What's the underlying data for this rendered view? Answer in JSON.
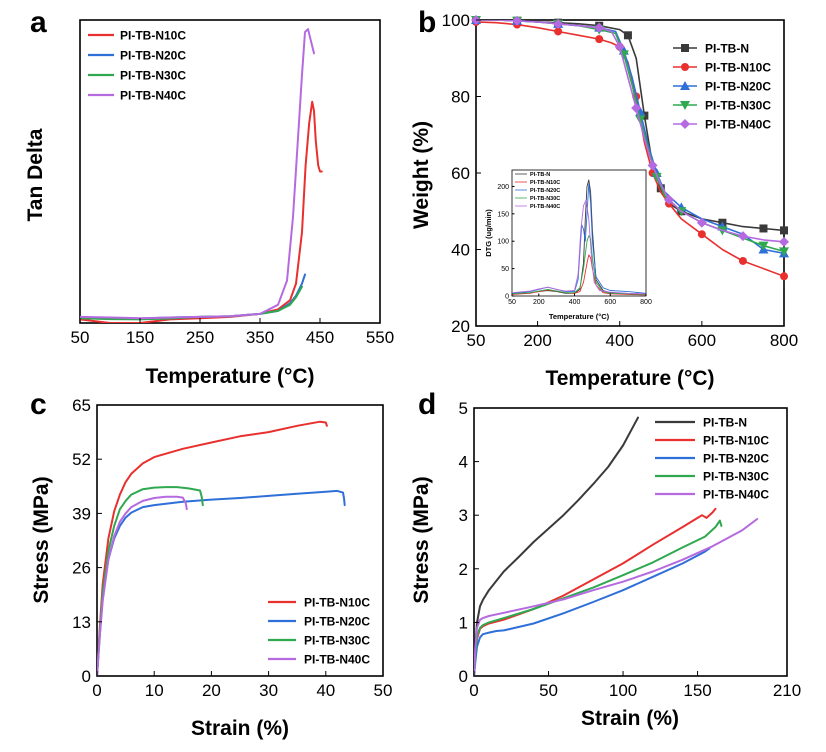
{
  "colors": {
    "PI-TB-N": "#3a3a3a",
    "PI-TB-N10C": "#e8302f",
    "PI-TB-N20C": "#2f6fd8",
    "PI-TB-N30C": "#2fa84f",
    "PI-TB-N40C": "#b56ae0"
  },
  "chart_data": [
    {
      "panel": "a",
      "type": "line",
      "xlabel": "Temperature (°C)",
      "ylabel": "Tan Delta",
      "xlim": [
        50,
        550
      ],
      "xticks": [
        "50",
        "150",
        "250",
        "350",
        "450",
        "550"
      ],
      "ylim": [
        0,
        1.0
      ],
      "yticks": [],
      "legend_position": "top-left",
      "series": [
        {
          "name": "PI-TB-N10C",
          "marker": "line",
          "x": [
            50,
            100,
            150,
            200,
            250,
            300,
            350,
            380,
            400,
            410,
            420,
            426,
            432,
            437,
            440,
            443,
            447,
            450,
            453
          ],
          "y": [
            0.012,
            0.0,
            0.0,
            0.012,
            0.016,
            0.02,
            0.03,
            0.045,
            0.075,
            0.13,
            0.3,
            0.52,
            0.66,
            0.73,
            0.7,
            0.6,
            0.52,
            0.5,
            0.5
          ]
        },
        {
          "name": "PI-TB-N20C",
          "marker": "line",
          "x": [
            50,
            100,
            150,
            200,
            250,
            300,
            350,
            380,
            400,
            410,
            420,
            425
          ],
          "y": [
            0.018,
            0.015,
            0.015,
            0.018,
            0.02,
            0.022,
            0.03,
            0.04,
            0.065,
            0.09,
            0.13,
            0.16
          ]
        },
        {
          "name": "PI-TB-N30C",
          "marker": "line",
          "x": [
            50,
            100,
            150,
            200,
            250,
            300,
            350,
            380,
            400,
            410,
            420
          ],
          "y": [
            0.016,
            0.013,
            0.012,
            0.015,
            0.02,
            0.022,
            0.03,
            0.04,
            0.06,
            0.085,
            0.12
          ]
        },
        {
          "name": "PI-TB-N40C",
          "marker": "line",
          "x": [
            50,
            100,
            150,
            200,
            250,
            300,
            350,
            380,
            395,
            405,
            413,
            420,
            425,
            430,
            435,
            440
          ],
          "y": [
            0.02,
            0.018,
            0.016,
            0.018,
            0.02,
            0.022,
            0.03,
            0.06,
            0.14,
            0.35,
            0.6,
            0.82,
            0.96,
            0.97,
            0.93,
            0.89
          ]
        }
      ]
    },
    {
      "panel": "b",
      "type": "line",
      "xlabel": "Temperature (°C)",
      "ylabel": "Weight (%)",
      "xlim": [
        50,
        800
      ],
      "xticks": [
        "50",
        "200",
        "400",
        "600",
        "800"
      ],
      "ylim": [
        20,
        100
      ],
      "yticks": [
        "20",
        "40",
        "60",
        "80",
        "100"
      ],
      "legend_position": "top-right",
      "series": [
        {
          "name": "PI-TB-N",
          "marker": "square",
          "x": [
            50,
            100,
            150,
            200,
            250,
            300,
            350,
            400,
            420,
            440,
            460,
            480,
            500,
            520,
            550,
            600,
            650,
            700,
            750,
            800
          ],
          "y": [
            100,
            100,
            99.8,
            99.5,
            99.3,
            99,
            98.5,
            97.5,
            96,
            90,
            75,
            62,
            56,
            52,
            50,
            48,
            47,
            46,
            45.5,
            45
          ]
        },
        {
          "name": "PI-TB-N10C",
          "marker": "circle",
          "x": [
            50,
            100,
            150,
            200,
            250,
            300,
            350,
            380,
            400,
            420,
            440,
            460,
            480,
            500,
            520,
            550,
            600,
            650,
            700,
            750,
            800
          ],
          "y": [
            99.5,
            99.3,
            98.8,
            98,
            97,
            96,
            95,
            94,
            93,
            89,
            80,
            68,
            60,
            55,
            52,
            48,
            44,
            40,
            37,
            35,
            33
          ]
        },
        {
          "name": "PI-TB-N20C",
          "marker": "triangle-up",
          "x": [
            50,
            100,
            150,
            200,
            250,
            300,
            350,
            390,
            410,
            430,
            450,
            470,
            490,
            510,
            550,
            600,
            650,
            700,
            750,
            800
          ],
          "y": [
            100,
            100,
            99.8,
            99.5,
            99,
            98.5,
            98,
            97,
            92,
            85,
            76,
            67,
            60,
            55,
            51,
            48,
            46,
            44,
            40,
            39
          ]
        },
        {
          "name": "PI-TB-N30C",
          "marker": "triangle-down",
          "x": [
            50,
            100,
            150,
            200,
            250,
            300,
            350,
            390,
            410,
            430,
            450,
            470,
            490,
            510,
            550,
            600,
            650,
            700,
            750,
            800
          ],
          "y": [
            100,
            100,
            99.8,
            99.5,
            99,
            98.5,
            97.5,
            96.5,
            91,
            83,
            74,
            66,
            59,
            54,
            50,
            47,
            45,
            43,
            41,
            39.5
          ]
        },
        {
          "name": "PI-TB-N40C",
          "marker": "diamond",
          "x": [
            50,
            100,
            150,
            200,
            250,
            300,
            350,
            380,
            400,
            420,
            440,
            460,
            480,
            500,
            520,
            550,
            600,
            650,
            700,
            750,
            800
          ],
          "y": [
            100,
            100,
            99.8,
            99.5,
            99,
            98.5,
            98,
            97,
            93,
            85,
            77,
            69,
            62,
            57,
            53,
            50,
            47,
            45,
            43.5,
            42.5,
            42
          ]
        }
      ],
      "inset": {
        "type": "line",
        "xlabel": "Temperature (°C)",
        "ylabel": "DTG (ug/min)",
        "xlim": [
          50,
          800
        ],
        "xticks": [
          "50",
          "200",
          "400",
          "600",
          "800"
        ],
        "ylim": [
          0,
          230
        ],
        "yticks": [
          "0",
          "50",
          "100",
          "150",
          "200"
        ],
        "legend_position": "top-left",
        "series": [
          {
            "name": "PI-TB-N",
            "x": [
              50,
              150,
              200,
              250,
              300,
              350,
              400,
              430,
              450,
              460,
              470,
              480,
              490,
              500,
              520,
              560,
              600,
              700,
              800
            ],
            "y": [
              4,
              6,
              8,
              10,
              8,
              5,
              5,
              12,
              60,
              140,
              200,
              212,
              190,
              120,
              30,
              10,
              6,
              4,
              3
            ]
          },
          {
            "name": "PI-TB-N10C",
            "x": [
              50,
              150,
              200,
              250,
              300,
              350,
              400,
              430,
              450,
              470,
              480,
              490,
              500,
              520,
              560,
              600,
              700,
              800
            ],
            "y": [
              3,
              5,
              8,
              11,
              9,
              6,
              5,
              8,
              25,
              60,
              75,
              70,
              50,
              20,
              6,
              4,
              3,
              2
            ]
          },
          {
            "name": "PI-TB-N20C",
            "x": [
              50,
              150,
              200,
              250,
              300,
              350,
              400,
              420,
              430,
              440,
              450,
              460,
              470,
              480,
              490,
              500,
              520,
              560,
              600,
              700,
              800
            ],
            "y": [
              5,
              8,
              12,
              16,
              12,
              8,
              8,
              30,
              80,
              130,
              122,
              100,
              150,
              205,
              170,
              100,
              35,
              15,
              10,
              8,
              5
            ]
          },
          {
            "name": "PI-TB-N30C",
            "x": [
              50,
              150,
              200,
              250,
              300,
              350,
              400,
              430,
              450,
              470,
              480,
              490,
              500,
              520,
              560,
              600,
              700,
              800
            ],
            "y": [
              4,
              6,
              9,
              12,
              9,
              6,
              6,
              15,
              50,
              100,
              110,
              105,
              70,
              25,
              8,
              5,
              4,
              3
            ]
          },
          {
            "name": "PI-TB-N40C",
            "x": [
              50,
              150,
              200,
              250,
              300,
              350,
              400,
              420,
              435,
              450,
              465,
              480,
              495,
              510,
              540,
              600,
              700,
              800
            ],
            "y": [
              6,
              9,
              13,
              16,
              12,
              9,
              10,
              40,
              120,
              165,
              175,
              140,
              70,
              25,
              10,
              7,
              5,
              4
            ]
          }
        ]
      }
    },
    {
      "panel": "c",
      "type": "line",
      "xlabel": "Strain (%)",
      "ylabel": "Stress (MPa)",
      "xlim": [
        0,
        50
      ],
      "xticks": [
        "0",
        "10",
        "20",
        "30",
        "40",
        "50"
      ],
      "ylim": [
        0,
        65
      ],
      "yticks": [
        "0",
        "13",
        "26",
        "39",
        "52",
        "65"
      ],
      "legend_position": "bottom-right",
      "series": [
        {
          "name": "PI-TB-N10C",
          "marker": "line",
          "x": [
            0,
            0.5,
            1,
            2,
            3,
            4,
            5,
            6,
            8,
            10,
            15,
            20,
            25,
            30,
            35,
            39,
            40,
            40.2
          ],
          "y": [
            0,
            12,
            22,
            33,
            39.5,
            43.5,
            46.5,
            48.5,
            51,
            52.5,
            54.5,
            56,
            57.5,
            58.5,
            60,
            61,
            60.8,
            60
          ]
        },
        {
          "name": "PI-TB-N20C",
          "marker": "line",
          "x": [
            0,
            0.5,
            1,
            2,
            3,
            4,
            5,
            6,
            8,
            10,
            15,
            20,
            25,
            30,
            35,
            40,
            42,
            43,
            43.2,
            43.3
          ],
          "y": [
            0,
            10,
            19,
            28,
            33,
            36,
            38,
            39.2,
            40.5,
            41,
            41.8,
            42.3,
            42.7,
            43.2,
            43.7,
            44.2,
            44.4,
            44,
            42.5,
            41
          ]
        },
        {
          "name": "PI-TB-N30C",
          "marker": "line",
          "x": [
            0,
            0.5,
            1,
            2,
            3,
            4,
            5,
            6,
            8,
            10,
            12,
            14,
            16,
            18,
            18.3,
            18.5
          ],
          "y": [
            0,
            11,
            20,
            30,
            36,
            40,
            42,
            43.5,
            44.8,
            45.2,
            45.3,
            45.3,
            45,
            44.5,
            43,
            41
          ]
        },
        {
          "name": "PI-TB-N40C",
          "marker": "line",
          "x": [
            0,
            0.5,
            1,
            2,
            3,
            4,
            5,
            6,
            8,
            10,
            12,
            14,
            15,
            15.5,
            15.7
          ],
          "y": [
            0,
            10,
            18,
            28,
            33.5,
            37,
            39,
            40.5,
            42,
            42.7,
            43,
            43,
            42.8,
            41.5,
            40
          ]
        }
      ]
    },
    {
      "panel": "d",
      "type": "line",
      "xlabel": "Strain (%)",
      "ylabel": "Stress (MPa)",
      "xlim": [
        0,
        210
      ],
      "xticks": [
        "0",
        "50",
        "100",
        "150",
        "210"
      ],
      "ylim": [
        0,
        5
      ],
      "yticks": [
        "0",
        "1",
        "2",
        "3",
        "4",
        "5"
      ],
      "legend_position": "top-right",
      "series": [
        {
          "name": "PI-TB-N",
          "marker": "line",
          "x": [
            0,
            1,
            2,
            4,
            6,
            10,
            20,
            30,
            40,
            50,
            60,
            70,
            80,
            90,
            100,
            110
          ],
          "y": [
            0,
            0.6,
            1.0,
            1.3,
            1.42,
            1.6,
            1.95,
            2.22,
            2.5,
            2.75,
            3.0,
            3.28,
            3.58,
            3.9,
            4.3,
            4.82
          ]
        },
        {
          "name": "PI-TB-N10C",
          "marker": "line",
          "x": [
            0,
            1,
            2,
            4,
            6,
            10,
            20,
            40,
            60,
            80,
            100,
            120,
            140,
            150,
            153,
            156,
            160,
            162
          ],
          "y": [
            0,
            0.4,
            0.7,
            0.88,
            0.93,
            0.98,
            1.05,
            1.25,
            1.5,
            1.8,
            2.1,
            2.45,
            2.78,
            2.95,
            3.0,
            2.95,
            3.05,
            3.12
          ]
        },
        {
          "name": "PI-TB-N20C",
          "marker": "line",
          "x": [
            0,
            1,
            2,
            4,
            6,
            10,
            15,
            20,
            40,
            60,
            80,
            100,
            120,
            140,
            155,
            158
          ],
          "y": [
            0,
            0.3,
            0.55,
            0.72,
            0.78,
            0.81,
            0.84,
            0.85,
            0.98,
            1.17,
            1.38,
            1.6,
            1.85,
            2.1,
            2.32,
            2.38
          ]
        },
        {
          "name": "PI-TB-N30C",
          "marker": "line",
          "x": [
            0,
            1,
            2,
            4,
            6,
            10,
            20,
            40,
            60,
            80,
            100,
            120,
            140,
            155,
            162,
            165,
            166
          ],
          "y": [
            0,
            0.45,
            0.75,
            0.9,
            0.95,
            1.0,
            1.08,
            1.25,
            1.45,
            1.65,
            1.88,
            2.12,
            2.4,
            2.6,
            2.78,
            2.9,
            2.8
          ]
        },
        {
          "name": "PI-TB-N40C",
          "marker": "line",
          "x": [
            0,
            1,
            2,
            4,
            6,
            10,
            20,
            40,
            60,
            80,
            100,
            120,
            140,
            160,
            180,
            190
          ],
          "y": [
            0,
            0.6,
            0.9,
            1.05,
            1.08,
            1.12,
            1.18,
            1.3,
            1.43,
            1.6,
            1.76,
            1.95,
            2.17,
            2.42,
            2.72,
            2.93
          ]
        }
      ]
    }
  ]
}
